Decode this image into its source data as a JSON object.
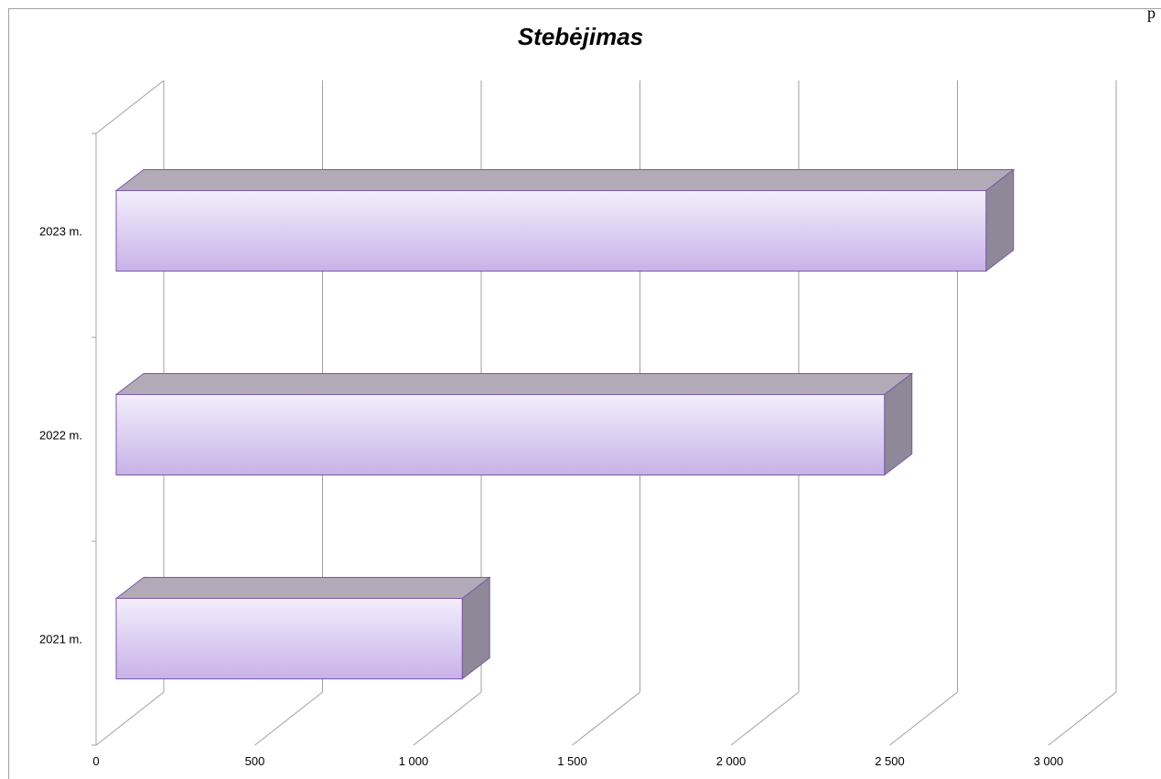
{
  "corner_text": "p",
  "chart_data": {
    "type": "bar",
    "orientation": "horizontal",
    "style": "3d",
    "title": "Stebėjimas",
    "categories": [
      "2021 m.",
      "2022 m.",
      "2023 m."
    ],
    "values": [
      1090,
      2420,
      2740
    ],
    "xlim": [
      0,
      3000
    ],
    "x_ticks": [
      0,
      500,
      1000,
      1500,
      2000,
      2500,
      3000
    ],
    "x_tick_labels": [
      "0",
      "500",
      "1 000",
      "1 500",
      "2 000",
      "2 500",
      "3 000"
    ],
    "grid": true,
    "legend": "none",
    "colors": {
      "bar_front_top": "#f3eefc",
      "bar_front_bottom": "#c8b2e8",
      "bar_top": "#b3aab8",
      "bar_side": "#8f8898",
      "bar_edge": "#7a5aa6",
      "grid": "#a0a0a0"
    }
  }
}
